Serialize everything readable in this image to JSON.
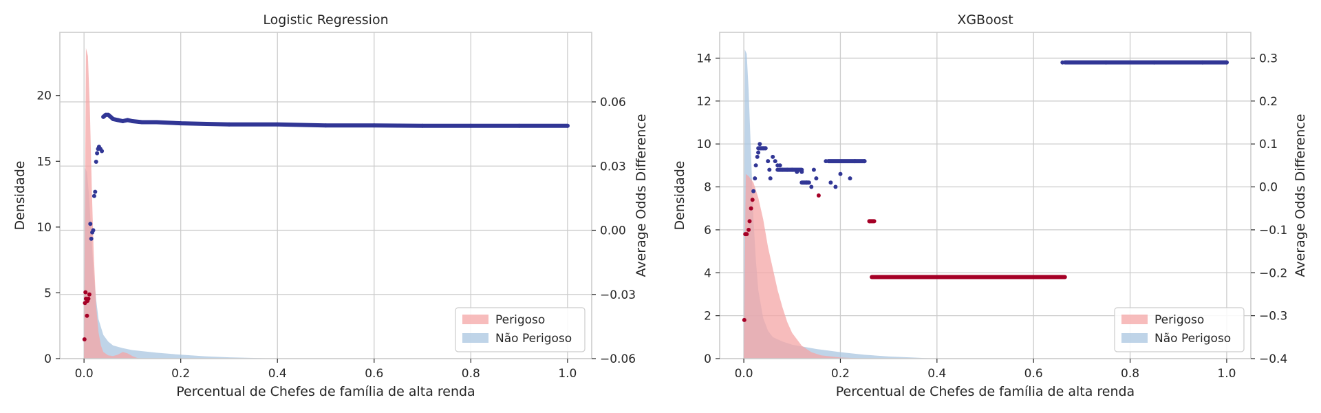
{
  "chart_data": [
    {
      "type": "area",
      "title": "Logistic Regression",
      "xlabel": "Percentual de Chefes de família de alta renda",
      "ylabel": "Densidade",
      "y2label": "Average Odds Difference",
      "xlim": [
        -0.05,
        1.05
      ],
      "ylim": [
        0,
        24.8
      ],
      "y2lim": [
        -0.06,
        0.0925
      ],
      "xticks": [
        0.0,
        0.2,
        0.4,
        0.6,
        0.8,
        1.0
      ],
      "xtick_labels": [
        "0.0",
        "0.2",
        "0.4",
        "0.6",
        "0.8",
        "1.0"
      ],
      "yticks": [
        0,
        5,
        10,
        15,
        20
      ],
      "ytick_labels": [
        "0",
        "5",
        "10",
        "15",
        "20"
      ],
      "y2ticks": [
        -0.06,
        -0.03,
        0.0,
        0.03,
        0.06
      ],
      "y2tick_labels": [
        "−0.06",
        "−0.03",
        "0.00",
        "0.03",
        "0.06"
      ],
      "grid": true,
      "legend_position": "lower right",
      "series": [
        {
          "name": "Perigoso",
          "kind": "density",
          "color": "#f4a6a6",
          "x": [
            0.0,
            0.004,
            0.008,
            0.012,
            0.016,
            0.02,
            0.025,
            0.03,
            0.035,
            0.04,
            0.05,
            0.06,
            0.07,
            0.08,
            0.09,
            0.1,
            0.11,
            0.12
          ],
          "y": [
            0,
            23.6,
            23.0,
            19.0,
            13.0,
            8.0,
            4.0,
            2.0,
            1.0,
            0.5,
            0.25,
            0.2,
            0.3,
            0.5,
            0.4,
            0.2,
            0.05,
            0
          ]
        },
        {
          "name": "Não Perigoso",
          "kind": "density",
          "color": "#a9c6e0",
          "x": [
            0.0,
            0.002,
            0.006,
            0.01,
            0.015,
            0.02,
            0.025,
            0.03,
            0.04,
            0.05,
            0.06,
            0.08,
            0.1,
            0.15,
            0.2,
            0.25,
            0.3,
            0.35,
            0.4
          ],
          "y": [
            0,
            14.5,
            14.2,
            12.5,
            9.5,
            6.5,
            4.5,
            3.0,
            1.8,
            1.3,
            1.0,
            0.8,
            0.65,
            0.45,
            0.3,
            0.18,
            0.1,
            0.05,
            0
          ]
        },
        {
          "name": "Average Odds Difference",
          "kind": "scatter",
          "axis": "y2",
          "color_positive": "#313695",
          "color_negative": "#a50026",
          "points": [
            [
              0.001,
              -0.051
            ],
            [
              0.002,
              -0.034
            ],
            [
              0.003,
              -0.029
            ],
            [
              0.004,
              -0.032
            ],
            [
              0.006,
              -0.04
            ],
            [
              0.007,
              -0.033
            ],
            [
              0.009,
              -0.032
            ],
            [
              0.011,
              -0.03
            ],
            [
              0.013,
              0.003
            ],
            [
              0.015,
              -0.004
            ],
            [
              0.017,
              -0.001
            ],
            [
              0.019,
              0.0
            ],
            [
              0.021,
              0.016
            ],
            [
              0.023,
              0.018
            ],
            [
              0.025,
              0.032
            ],
            [
              0.027,
              0.036
            ],
            [
              0.029,
              0.038
            ],
            [
              0.031,
              0.039
            ],
            [
              0.034,
              0.038
            ],
            [
              0.037,
              0.037
            ],
            [
              0.04,
              0.053
            ],
            [
              0.045,
              0.054
            ],
            [
              0.05,
              0.054
            ],
            [
              0.055,
              0.053
            ],
            [
              0.06,
              0.052
            ],
            [
              0.07,
              0.0515
            ],
            [
              0.08,
              0.051
            ],
            [
              0.09,
              0.0515
            ],
            [
              0.1,
              0.051
            ],
            [
              0.12,
              0.0505
            ],
            [
              0.15,
              0.0505
            ],
            [
              0.2,
              0.05
            ],
            [
              0.3,
              0.0495
            ],
            [
              0.4,
              0.0495
            ],
            [
              0.5,
              0.049
            ],
            [
              0.6,
              0.049
            ],
            [
              0.7,
              0.0488
            ],
            [
              0.8,
              0.0488
            ],
            [
              0.9,
              0.0488
            ],
            [
              1.0,
              0.0488
            ]
          ]
        }
      ],
      "legend": [
        "Perigoso",
        "Não Perigoso"
      ]
    },
    {
      "type": "area",
      "title": "XGBoost",
      "xlabel": "Percentual de Chefes de família de alta renda",
      "ylabel": "Densidade",
      "y2label": "Average Odds Difference",
      "xlim": [
        -0.05,
        1.05
      ],
      "ylim": [
        0,
        15.2
      ],
      "y2lim": [
        -0.4,
        0.36
      ],
      "xticks": [
        0.0,
        0.2,
        0.4,
        0.6,
        0.8,
        1.0
      ],
      "xtick_labels": [
        "0.0",
        "0.2",
        "0.4",
        "0.6",
        "0.8",
        "1.0"
      ],
      "yticks": [
        0,
        2,
        4,
        6,
        8,
        10,
        12,
        14
      ],
      "ytick_labels": [
        "0",
        "2",
        "4",
        "6",
        "8",
        "10",
        "12",
        "14"
      ],
      "y2ticks": [
        -0.4,
        -0.3,
        -0.2,
        -0.1,
        0.0,
        0.1,
        0.2,
        0.3
      ],
      "y2tick_labels": [
        "−0.4",
        "−0.3",
        "−0.2",
        "−0.1",
        "0.0",
        "0.1",
        "0.2",
        "0.3"
      ],
      "grid": true,
      "legend_position": "lower right",
      "series": [
        {
          "name": "Perigoso",
          "kind": "density",
          "color": "#f4a6a6",
          "x": [
            0.0,
            0.004,
            0.01,
            0.02,
            0.03,
            0.04,
            0.05,
            0.06,
            0.07,
            0.08,
            0.09,
            0.1,
            0.12,
            0.14,
            0.16,
            0.2,
            0.25,
            0.3
          ],
          "y": [
            0,
            8.6,
            8.5,
            8.2,
            7.5,
            6.5,
            5.2,
            4.2,
            3.2,
            2.4,
            1.7,
            1.2,
            0.6,
            0.3,
            0.15,
            0.05,
            0.01,
            0
          ]
        },
        {
          "name": "Não Perigoso",
          "kind": "density",
          "color": "#a9c6e0",
          "x": [
            0.0,
            0.002,
            0.006,
            0.01,
            0.015,
            0.02,
            0.025,
            0.03,
            0.04,
            0.05,
            0.06,
            0.08,
            0.1,
            0.15,
            0.2,
            0.25,
            0.3,
            0.35,
            0.4
          ],
          "y": [
            0,
            14.4,
            14.2,
            12.5,
            9.5,
            6.5,
            4.6,
            3.2,
            1.9,
            1.3,
            1.0,
            0.8,
            0.65,
            0.45,
            0.3,
            0.18,
            0.1,
            0.05,
            0
          ]
        },
        {
          "name": "Average Odds Difference",
          "kind": "scatter",
          "axis": "y2",
          "color_positive": "#313695",
          "color_negative": "#a50026",
          "points": [
            [
              0.001,
              -0.31
            ],
            [
              0.003,
              -0.11
            ],
            [
              0.006,
              -0.11
            ],
            [
              0.01,
              -0.1
            ],
            [
              0.012,
              -0.08
            ],
            [
              0.015,
              -0.05
            ],
            [
              0.018,
              -0.03
            ],
            [
              0.02,
              -0.01
            ],
            [
              0.023,
              0.02
            ],
            [
              0.025,
              0.05
            ],
            [
              0.028,
              0.07
            ],
            [
              0.03,
              0.08
            ],
            [
              0.033,
              0.1
            ],
            [
              0.035,
              0.09
            ],
            [
              0.04,
              0.09
            ],
            [
              0.045,
              0.09
            ],
            [
              0.05,
              0.06
            ],
            [
              0.053,
              0.04
            ],
            [
              0.055,
              0.02
            ],
            [
              0.06,
              0.07
            ],
            [
              0.065,
              0.06
            ],
            [
              0.07,
              0.05
            ],
            [
              0.075,
              0.05
            ],
            [
              0.08,
              0.04
            ],
            [
              0.09,
              0.04
            ],
            [
              0.1,
              0.04
            ],
            [
              0.11,
              0.035
            ],
            [
              0.12,
              0.035
            ],
            [
              0.13,
              0.01
            ],
            [
              0.14,
              0.0
            ],
            [
              0.145,
              0.04
            ],
            [
              0.15,
              0.02
            ],
            [
              0.155,
              -0.02
            ],
            [
              0.17,
              0.06
            ],
            [
              0.18,
              0.01
            ],
            [
              0.19,
              0.0
            ],
            [
              0.2,
              0.03
            ],
            [
              0.22,
              0.02
            ],
            [
              0.23,
              0.06
            ],
            [
              0.25,
              0.06
            ],
            [
              0.26,
              -0.08
            ],
            [
              0.27,
              -0.21
            ],
            [
              0.35,
              -0.21
            ],
            [
              0.45,
              -0.21
            ],
            [
              0.55,
              -0.21
            ],
            [
              0.65,
              -0.21
            ],
            [
              0.66,
              0.29
            ],
            [
              0.75,
              0.29
            ],
            [
              0.85,
              0.29
            ],
            [
              0.95,
              0.29
            ],
            [
              1.0,
              0.29
            ]
          ],
          "segments": [
            {
              "from": 0.03,
              "to": 0.045,
              "value": 0.09
            },
            {
              "from": 0.07,
              "to": 0.12,
              "value": 0.04
            },
            {
              "from": 0.12,
              "to": 0.135,
              "value": 0.01
            },
            {
              "from": 0.175,
              "to": 0.25,
              "value": 0.06
            },
            {
              "from": 0.26,
              "to": 0.27,
              "value": -0.08
            },
            {
              "from": 0.265,
              "to": 0.665,
              "value": -0.21
            },
            {
              "from": 0.665,
              "to": 1.0,
              "value": 0.29
            }
          ]
        }
      ],
      "legend": [
        "Perigoso",
        "Não Perigoso"
      ]
    }
  ]
}
